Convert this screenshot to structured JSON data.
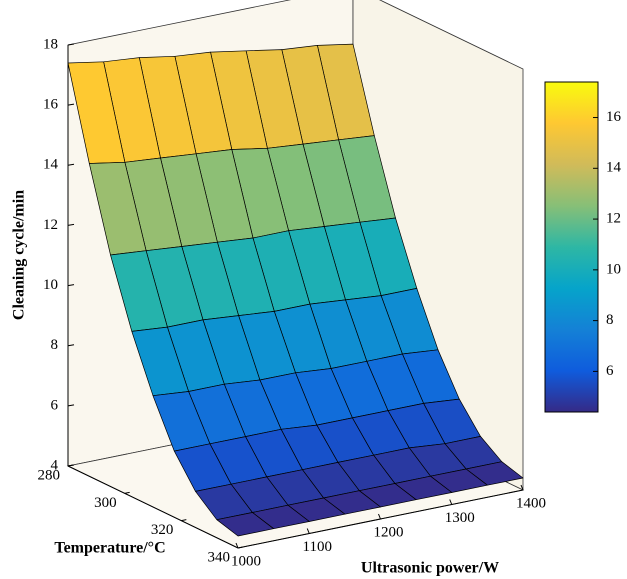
{
  "chart_data": {
    "type": "surface",
    "xlabel": "Ultrasonic power/W",
    "ylabel": "Temperature/°C",
    "zlabel": "Cleaning cycle/min",
    "x": [
      1000,
      1050,
      1100,
      1150,
      1200,
      1250,
      1300,
      1350,
      1400
    ],
    "y": [
      280,
      287.5,
      295,
      302.5,
      310,
      317.5,
      325,
      332.5,
      340
    ],
    "z": [
      [
        17.4,
        17.2,
        17.1,
        16.9,
        16.8,
        16.6,
        16.4,
        16.3,
        16.1
      ],
      [
        14.4,
        14.2,
        14.1,
        14.0,
        13.9,
        13.7,
        13.6,
        13.5,
        13.4
      ],
      [
        11.7,
        11.6,
        11.5,
        11.4,
        11.3,
        11.3,
        11.2,
        11.1,
        11.0
      ],
      [
        9.5,
        9.4,
        9.4,
        9.3,
        9.2,
        9.2,
        9.1,
        9.0,
        9.0
      ],
      [
        7.7,
        7.6,
        7.6,
        7.5,
        7.5,
        7.4,
        7.4,
        7.4,
        7.3
      ],
      [
        6.2,
        6.2,
        6.2,
        6.2,
        6.1,
        6.1,
        6.1,
        6.1,
        6.0
      ],
      [
        5.2,
        5.2,
        5.2,
        5.2,
        5.2,
        5.2,
        5.2,
        5.1,
        5.1
      ],
      [
        4.6,
        4.6,
        4.6,
        4.6,
        4.6,
        4.6,
        4.6,
        4.6,
        4.6
      ],
      [
        4.4,
        4.4,
        4.4,
        4.4,
        4.4,
        4.4,
        4.4,
        4.4,
        4.4
      ]
    ],
    "xlim": [
      1000,
      1400
    ],
    "ylim": [
      280,
      340
    ],
    "zlim": [
      4,
      18
    ],
    "xticks": [
      1000,
      1100,
      1200,
      1300,
      1400
    ],
    "yticks": [
      280,
      300,
      320,
      340
    ],
    "zticks": [
      4,
      6,
      8,
      10,
      12,
      14,
      16,
      18
    ],
    "clim": [
      4.4,
      17.4
    ],
    "cticks": [
      6,
      8,
      10,
      12,
      14,
      16
    ],
    "colormap": [
      "#352a87",
      "#0f5cdd",
      "#1481d6",
      "#06a4ca",
      "#2eb7a4",
      "#87bf77",
      "#d1bb59",
      "#fec832",
      "#f9fb0e"
    ],
    "edge_color": "#000000"
  }
}
